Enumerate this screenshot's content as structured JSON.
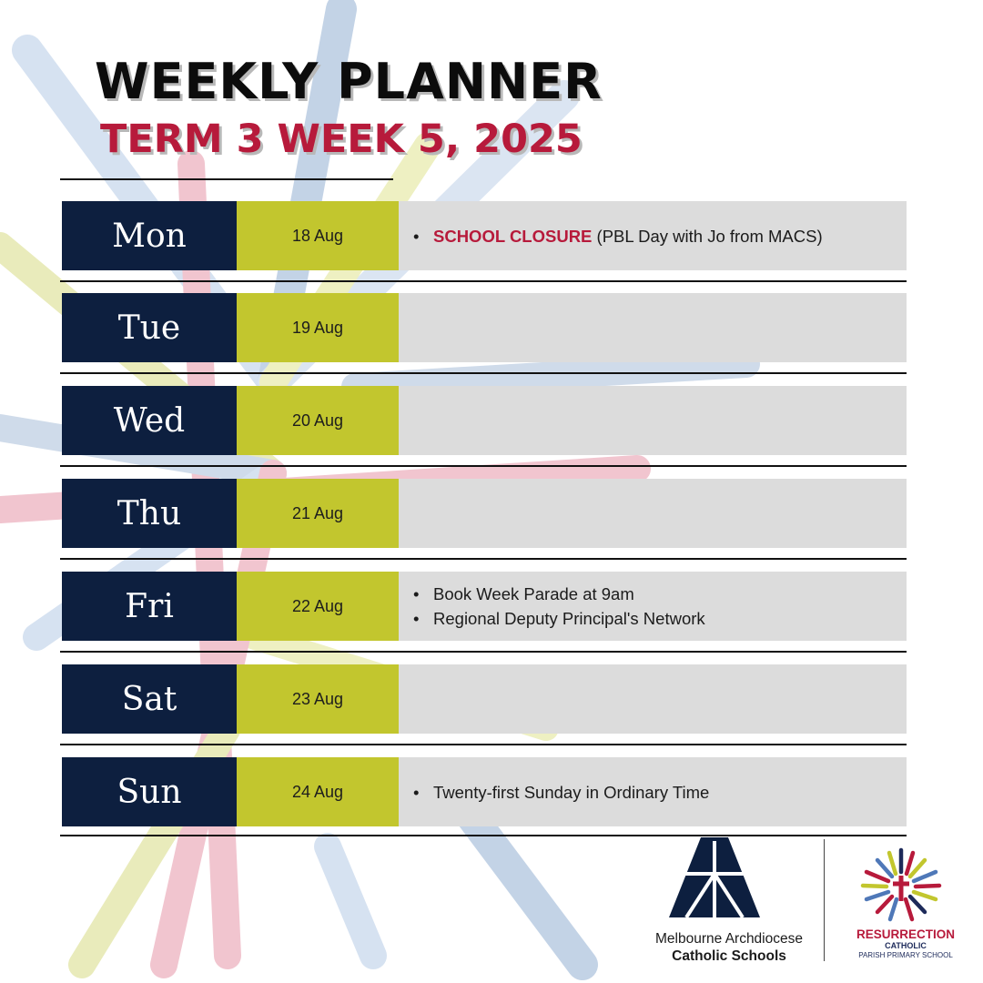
{
  "header": {
    "title": "WEEKLY PLANNER",
    "subtitle": "TERM 3 WEEK 5, 2025"
  },
  "colors": {
    "navy": "#0d1f3f",
    "lime": "#c2c62e",
    "grey": "#dcdcdc",
    "accent_red": "#b71a3b"
  },
  "days": [
    {
      "day": "Mon",
      "date": "18 Aug",
      "events": [
        {
          "highlight": "SCHOOL CLOSURE",
          "text": " (PBL Day with Jo from MACS)"
        }
      ]
    },
    {
      "day": "Tue",
      "date": "19 Aug",
      "events": []
    },
    {
      "day": "Wed",
      "date": "20 Aug",
      "events": []
    },
    {
      "day": "Thu",
      "date": "21 Aug",
      "events": []
    },
    {
      "day": "Fri",
      "date": "22 Aug",
      "events": [
        {
          "highlight": "",
          "text": "Book Week Parade at 9am"
        },
        {
          "highlight": "",
          "text": "Regional Deputy Principal's Network"
        }
      ]
    },
    {
      "day": "Sat",
      "date": "23 Aug",
      "events": []
    },
    {
      "day": "Sun",
      "date": "24 Aug",
      "events": [
        {
          "highlight": "",
          "text": "Twenty-first Sunday in Ordinary Time"
        }
      ]
    }
  ],
  "logos": {
    "macs": {
      "line1": "Melbourne Archdiocese",
      "line2": "Catholic Schools"
    },
    "resurrection": {
      "name": "RESURRECTION",
      "line2": "CATHOLIC",
      "line3": "PARISH PRIMARY SCHOOL"
    }
  }
}
